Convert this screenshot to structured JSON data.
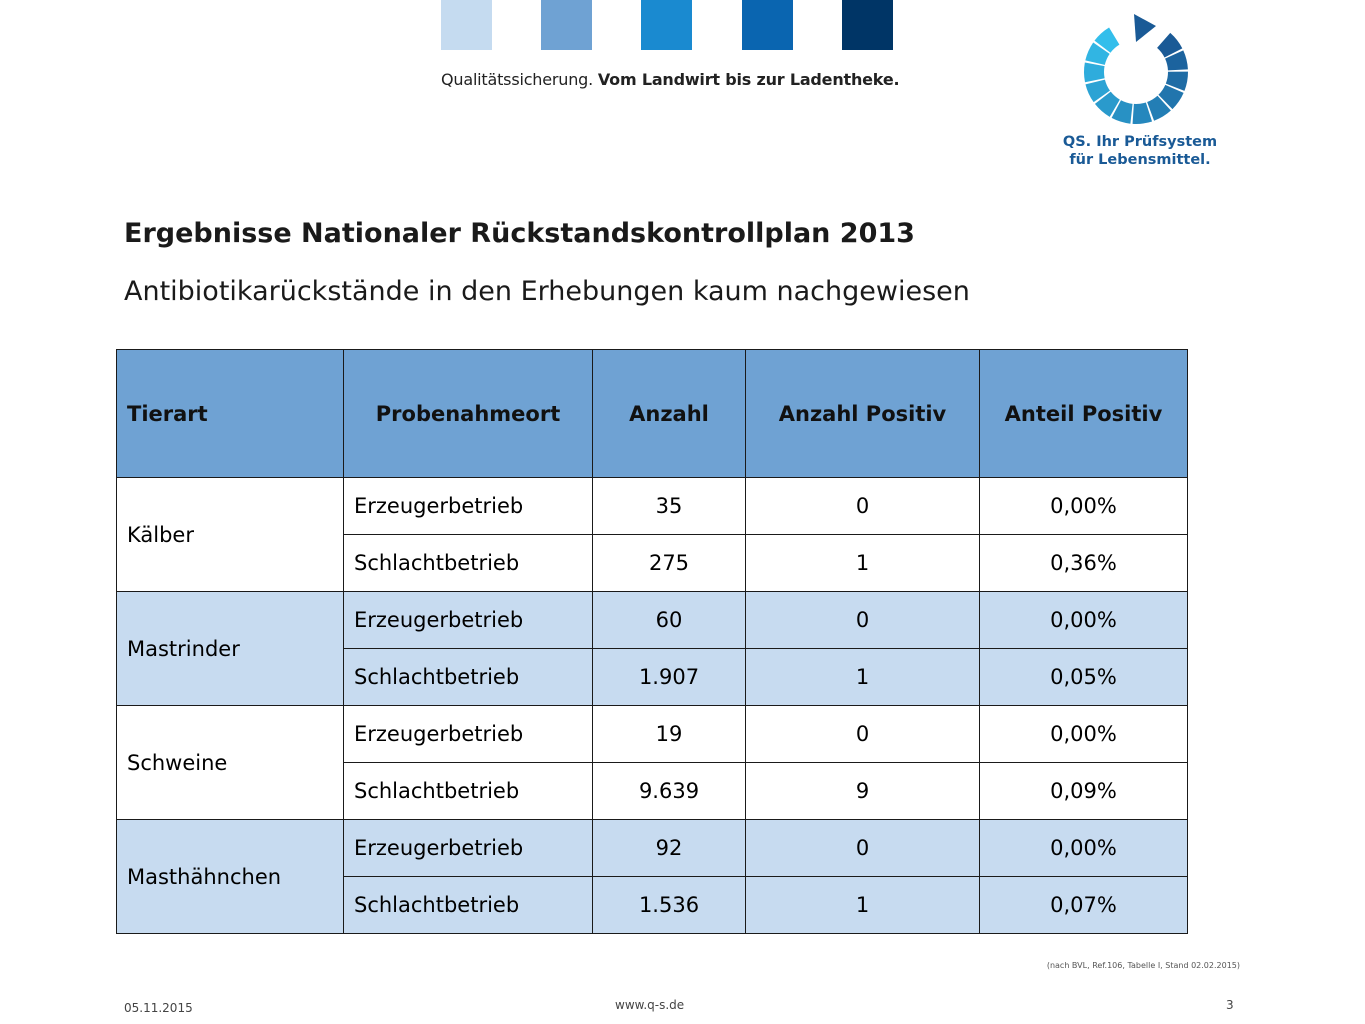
{
  "header": {
    "square_colors": [
      "#c5dbf0",
      "#6fa2d3",
      "#1a8ad0",
      "#0a65b0",
      "#003566"
    ],
    "tagline_regular": "Qualitätssicherung.",
    "tagline_bold": "Vom Landwirt bis zur Ladentheke."
  },
  "logo": {
    "icon": "qs-arrow-circle-icon",
    "line1": "QS. Ihr Prüfsystem",
    "line2": "für Lebensmittel.",
    "color": "#1a5a96"
  },
  "title": "Ergebnisse Nationaler Rückstandskontrollplan 2013",
  "subtitle": "Antibiotikarückstände in den Erhebungen kaum nachgewiesen",
  "table": {
    "header_color": "#6fa2d3",
    "shade_color": "#c7dbf0",
    "columns": [
      "Tierart",
      "Probenahmeort",
      "Anzahl",
      "Anzahl Positiv",
      "Anteil Positiv"
    ],
    "groups": [
      {
        "animal": "Kälber",
        "rows": [
          {
            "location": "Erzeugerbetrieb",
            "count": "35",
            "positive": "0",
            "share": "0,00%"
          },
          {
            "location": "Schlachtbetrieb",
            "count": "275",
            "positive": "1",
            "share": "0,36%"
          }
        ]
      },
      {
        "animal": "Mastrinder",
        "rows": [
          {
            "location": "Erzeugerbetrieb",
            "count": "60",
            "positive": "0",
            "share": "0,00%"
          },
          {
            "location": "Schlachtbetrieb",
            "count": "1.907",
            "positive": "1",
            "share": "0,05%"
          }
        ]
      },
      {
        "animal": "Schweine",
        "rows": [
          {
            "location": "Erzeugerbetrieb",
            "count": "19",
            "positive": "0",
            "share": "0,00%"
          },
          {
            "location": "Schlachtbetrieb",
            "count": "9.639",
            "positive": "9",
            "share": "0,09%"
          }
        ]
      },
      {
        "animal": "Masthähnchen",
        "rows": [
          {
            "location": "Erzeugerbetrieb",
            "count": "92",
            "positive": "0",
            "share": "0,00%"
          },
          {
            "location": "Schlachtbetrieb",
            "count": "1.536",
            "positive": "1",
            "share": "0,07%"
          }
        ]
      }
    ]
  },
  "source_note": "(nach BVL, Ref.106, Tabelle I, Stand 02.02.2015)",
  "footer": {
    "date": "05.11.2015",
    "url": "www.q-s.de",
    "page": "3"
  }
}
